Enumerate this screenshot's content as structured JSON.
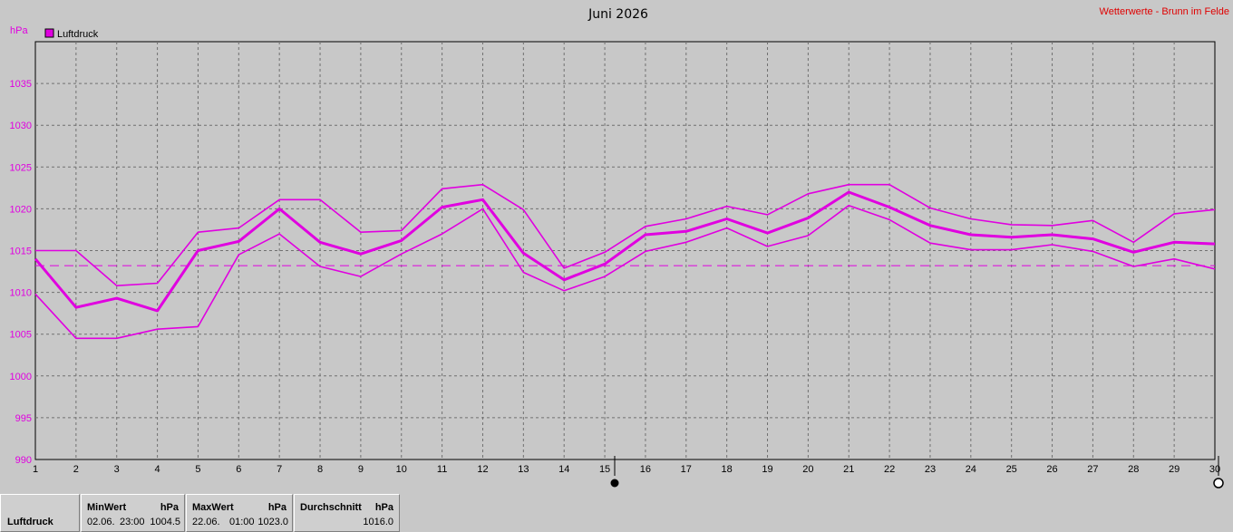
{
  "chart_data": {
    "type": "line",
    "title": "Juni 2026",
    "brand": "Wetterwerte - Brunn im Felde",
    "ylabel": "hPa",
    "ylim": [
      990,
      1040
    ],
    "yticks": [
      990,
      995,
      1000,
      1005,
      1010,
      1015,
      1020,
      1025,
      1030,
      1035
    ],
    "x": [
      1,
      2,
      3,
      4,
      5,
      6,
      7,
      8,
      9,
      10,
      11,
      12,
      13,
      14,
      15,
      16,
      17,
      18,
      19,
      20,
      21,
      22,
      23,
      24,
      25,
      26,
      27,
      28,
      29,
      30
    ],
    "legend": "Luftdruck",
    "reference_line": 1013.2,
    "colors": {
      "series": "#e000e0",
      "brand": "#e00000"
    },
    "series": [
      {
        "role": "max",
        "values": [
          1015.0,
          1015.0,
          1010.8,
          1011.1,
          1017.2,
          1017.7,
          1021.1,
          1021.1,
          1017.2,
          1017.4,
          1022.4,
          1022.9,
          1019.9,
          1012.9,
          1014.8,
          1017.9,
          1018.8,
          1020.3,
          1019.3,
          1021.8,
          1022.9,
          1022.9,
          1020.1,
          1018.8,
          1018.1,
          1018.0,
          1018.6,
          1016.0,
          1019.4,
          1019.9
        ]
      },
      {
        "role": "avg",
        "values": [
          1014.0,
          1008.2,
          1009.3,
          1007.8,
          1015.0,
          1016.1,
          1020.0,
          1016.0,
          1014.6,
          1016.2,
          1020.2,
          1021.1,
          1014.7,
          1011.5,
          1013.4,
          1016.9,
          1017.3,
          1018.8,
          1017.1,
          1018.9,
          1022.0,
          1020.2,
          1018.0,
          1016.9,
          1016.6,
          1016.9,
          1016.4,
          1014.8,
          1016.0,
          1015.8
        ]
      },
      {
        "role": "min",
        "values": [
          1009.8,
          1004.5,
          1004.5,
          1005.6,
          1005.9,
          1014.5,
          1017.0,
          1013.1,
          1011.9,
          1014.6,
          1017.0,
          1020.0,
          1012.4,
          1010.2,
          1011.9,
          1014.9,
          1016.0,
          1017.7,
          1015.5,
          1016.8,
          1020.4,
          1018.7,
          1015.9,
          1015.1,
          1015.1,
          1015.7,
          1014.9,
          1013.1,
          1014.0,
          1012.8
        ]
      }
    ]
  },
  "stats": {
    "name": "Luftdruck",
    "min": {
      "header": "MinWert",
      "unit": "hPa",
      "date": "02.06.",
      "time": "23:00",
      "value": "1004.5"
    },
    "max": {
      "header": "MaxWert",
      "unit": "hPa",
      "date": "22.06.",
      "time": "01:00",
      "value": "1023.0"
    },
    "avg": {
      "header": "Durchschnitt",
      "unit": "hPa",
      "value": "1016.0"
    }
  }
}
